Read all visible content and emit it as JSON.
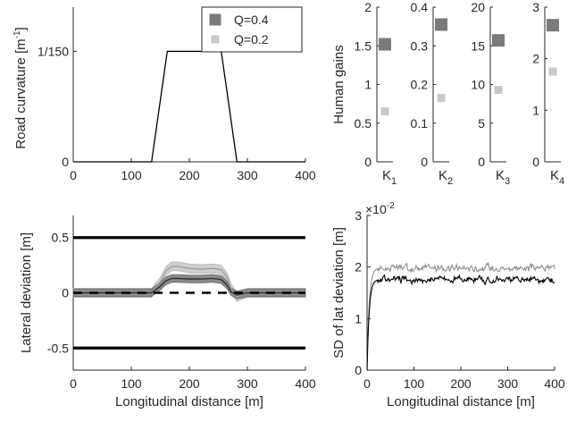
{
  "chart_data": [
    {
      "id": "curvature",
      "type": "line",
      "ylabel": "Road curvature [m",
      "ylabel_sup": "-1",
      "ylabel_close": "]",
      "xlim": [
        0,
        400
      ],
      "ylim": [
        0,
        0.009333
      ],
      "xticks": [
        0,
        100,
        200,
        300,
        400
      ],
      "yticks": [
        {
          "v": 0,
          "label": "0"
        },
        {
          "v": 0.0066667,
          "label": "1/150"
        }
      ],
      "series": [
        {
          "x": [
            0,
            135,
            162,
            255,
            282,
            400
          ],
          "y": [
            0,
            0,
            0.0066667,
            0.0066667,
            0,
            0
          ]
        }
      ],
      "legend": [
        {
          "label": "Q=0.4",
          "color": "#7a7a7a"
        },
        {
          "label": "Q=0.2",
          "color": "#c8c8c8"
        }
      ]
    },
    {
      "id": "gains",
      "type": "scatter",
      "ylabel": "Human gains",
      "panels": [
        {
          "label": "K",
          "sub": "1",
          "ylim": [
            0,
            2
          ],
          "yticks": [
            "0",
            "0.5",
            "1",
            "1.5",
            "2"
          ],
          "tickvals": [
            0,
            0.5,
            1,
            1.5,
            2
          ],
          "q04": 1.52,
          "q02": 0.65
        },
        {
          "label": "K",
          "sub": "2",
          "ylim": [
            0,
            0.4
          ],
          "yticks": [
            "0",
            "0.1",
            "0.2",
            "0.3",
            "0.4"
          ],
          "tickvals": [
            0,
            0.1,
            0.2,
            0.3,
            0.4
          ],
          "q04": 0.355,
          "q02": 0.165
        },
        {
          "label": "K",
          "sub": "3",
          "ylim": [
            0,
            20
          ],
          "yticks": [
            "0",
            "5",
            "10",
            "15",
            "20"
          ],
          "tickvals": [
            0,
            5,
            10,
            15,
            20
          ],
          "q04": 15.7,
          "q02": 9.3
        },
        {
          "label": "K",
          "sub": "4",
          "ylim": [
            0,
            3
          ],
          "yticks": [
            "0",
            "1",
            "2",
            "3"
          ],
          "tickvals": [
            0,
            1,
            2,
            3
          ],
          "q04": 2.65,
          "q02": 1.75
        }
      ]
    },
    {
      "id": "lateral",
      "type": "line",
      "xlabel": "Longitudinal distance [m]",
      "ylabel": "Lateral deviation [m]",
      "xlim": [
        0,
        400
      ],
      "ylim": [
        -0.7,
        0.7
      ],
      "xticks": [
        0,
        100,
        200,
        300,
        400
      ],
      "yticks": [
        {
          "v": -0.5,
          "label": "-0.5"
        },
        {
          "v": 0,
          "label": "0"
        },
        {
          "v": 0.5,
          "label": "0.5"
        }
      ],
      "bounds": [
        0.5,
        -0.5
      ],
      "centerline": 0,
      "q02_mean": {
        "x": [
          0,
          135,
          150,
          160,
          170,
          180,
          200,
          220,
          240,
          255,
          265,
          272,
          282,
          290,
          300,
          400
        ],
        "y": [
          0,
          0,
          0.1,
          0.2,
          0.24,
          0.24,
          0.22,
          0.215,
          0.22,
          0.21,
          0.14,
          0.04,
          -0.04,
          -0.02,
          0,
          0
        ]
      },
      "q02_band": 0.04,
      "q04_mean": {
        "x": [
          0,
          135,
          150,
          160,
          170,
          180,
          200,
          220,
          240,
          255,
          265,
          272,
          282,
          290,
          300,
          400
        ],
        "y": [
          0,
          0,
          0.06,
          0.11,
          0.13,
          0.13,
          0.125,
          0.125,
          0.13,
          0.12,
          0.07,
          0.01,
          -0.02,
          -0.01,
          0,
          0
        ]
      },
      "q04_band": 0.035
    },
    {
      "id": "sd",
      "type": "line",
      "xlabel": "Longitudinal distance [m]",
      "ylabel": "SD of lat deviation [m]",
      "xlim": [
        0,
        400
      ],
      "ylim": [
        0,
        0.03
      ],
      "xticks": [
        0,
        100,
        200,
        300,
        400
      ],
      "yticks": [
        {
          "v": 0,
          "label": "0"
        },
        {
          "v": 0.01,
          "label": "1"
        },
        {
          "v": 0.02,
          "label": "2"
        },
        {
          "v": 0.03,
          "label": "3"
        }
      ],
      "multiplier_base": "×10",
      "multiplier_exp": "-2",
      "q02_level": 0.0198,
      "q04_level": 0.0176
    }
  ]
}
